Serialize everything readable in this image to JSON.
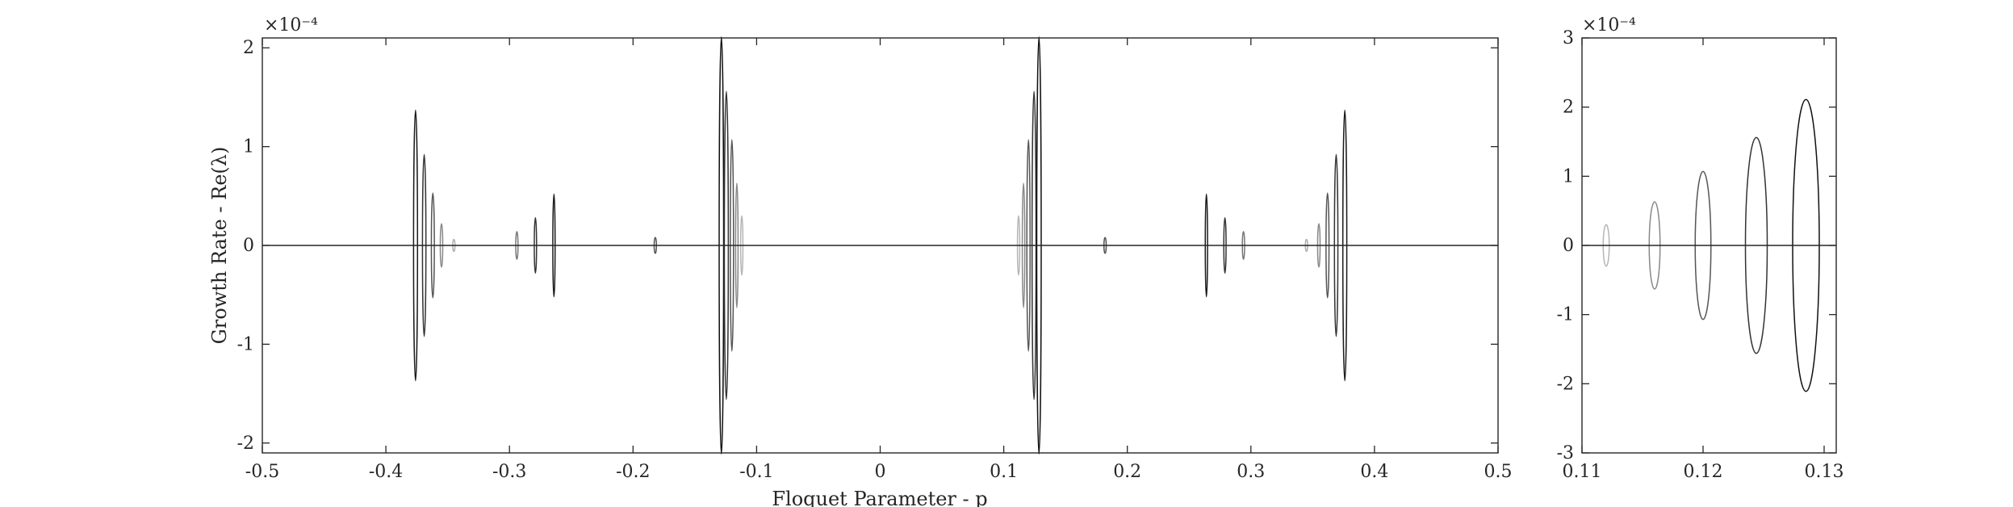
{
  "chart_data": [
    {
      "type": "scatter",
      "xlabel": "Floquet Parameter - p",
      "ylabel": "Growth Rate - Re(λ)",
      "y_exponent_label": "×10⁻⁴",
      "xlim": [
        -0.5,
        0.5
      ],
      "ylim": [
        -2.1,
        2.1
      ],
      "x_ticks": [
        -0.5,
        -0.4,
        -0.3,
        -0.2,
        -0.1,
        0,
        0.1,
        0.2,
        0.3,
        0.4,
        0.5
      ],
      "x_tick_labels": [
        "-0.5",
        "-0.4",
        "-0.3",
        "-0.2",
        "-0.1",
        "0",
        "0.1",
        "0.2",
        "0.3",
        "0.4",
        "0.5"
      ],
      "y_ticks": [
        -2,
        -1,
        0,
        1,
        2
      ],
      "y_tick_labels": [
        "-2",
        "-1",
        "0",
        "1",
        "2"
      ],
      "grid": false,
      "baseline_y": 0,
      "instability_bubbles": [
        {
          "center": -0.376,
          "halfwidth": 0.0016,
          "height": 1.37,
          "color": "#1a1a1a"
        },
        {
          "center": -0.369,
          "halfwidth": 0.0014,
          "height": 0.92,
          "color": "#333333"
        },
        {
          "center": -0.362,
          "halfwidth": 0.0012,
          "height": 0.53,
          "color": "#555555"
        },
        {
          "center": -0.355,
          "halfwidth": 0.001,
          "height": 0.22,
          "color": "#888888"
        },
        {
          "center": -0.345,
          "halfwidth": 0.0008,
          "height": 0.06,
          "color": "#b0b0b0"
        },
        {
          "center": -0.294,
          "halfwidth": 0.0009,
          "height": 0.14,
          "color": "#777777"
        },
        {
          "center": -0.279,
          "halfwidth": 0.0009,
          "height": 0.28,
          "color": "#333333"
        },
        {
          "center": -0.264,
          "halfwidth": 0.0009,
          "height": 0.52,
          "color": "#1a1a1a"
        },
        {
          "center": -0.182,
          "halfwidth": 0.0008,
          "height": 0.08,
          "color": "#555555"
        },
        {
          "center": -0.1285,
          "halfwidth": 0.0018,
          "height": 2.11,
          "color": "#111111"
        },
        {
          "center": -0.1245,
          "halfwidth": 0.0016,
          "height": 1.56,
          "color": "#333333"
        },
        {
          "center": -0.12,
          "halfwidth": 0.0013,
          "height": 1.07,
          "color": "#555555"
        },
        {
          "center": -0.116,
          "halfwidth": 0.001,
          "height": 0.63,
          "color": "#888888"
        },
        {
          "center": -0.112,
          "halfwidth": 0.0008,
          "height": 0.3,
          "color": "#b5b5b5"
        },
        {
          "center": 0.112,
          "halfwidth": 0.0008,
          "height": 0.3,
          "color": "#b5b5b5"
        },
        {
          "center": 0.116,
          "halfwidth": 0.001,
          "height": 0.63,
          "color": "#888888"
        },
        {
          "center": 0.12,
          "halfwidth": 0.0013,
          "height": 1.07,
          "color": "#555555"
        },
        {
          "center": 0.1245,
          "halfwidth": 0.0016,
          "height": 1.56,
          "color": "#333333"
        },
        {
          "center": 0.1285,
          "halfwidth": 0.0018,
          "height": 2.11,
          "color": "#111111"
        },
        {
          "center": 0.182,
          "halfwidth": 0.0008,
          "height": 0.08,
          "color": "#555555"
        },
        {
          "center": 0.264,
          "halfwidth": 0.0009,
          "height": 0.52,
          "color": "#1a1a1a"
        },
        {
          "center": 0.279,
          "halfwidth": 0.0009,
          "height": 0.28,
          "color": "#333333"
        },
        {
          "center": 0.294,
          "halfwidth": 0.0009,
          "height": 0.14,
          "color": "#777777"
        },
        {
          "center": 0.345,
          "halfwidth": 0.0008,
          "height": 0.06,
          "color": "#b0b0b0"
        },
        {
          "center": 0.355,
          "halfwidth": 0.001,
          "height": 0.22,
          "color": "#888888"
        },
        {
          "center": 0.362,
          "halfwidth": 0.0012,
          "height": 0.53,
          "color": "#555555"
        },
        {
          "center": 0.369,
          "halfwidth": 0.0014,
          "height": 0.92,
          "color": "#333333"
        },
        {
          "center": 0.376,
          "halfwidth": 0.0016,
          "height": 1.37,
          "color": "#1a1a1a"
        }
      ]
    },
    {
      "type": "scatter",
      "xlabel": "",
      "ylabel": "",
      "y_exponent_label": "×10⁻⁴",
      "xlim": [
        0.11,
        0.131
      ],
      "ylim": [
        -3,
        3
      ],
      "x_ticks": [
        0.11,
        0.12,
        0.13
      ],
      "x_tick_labels": [
        "0.11",
        "0.12",
        "0.13"
      ],
      "y_ticks": [
        -3,
        -2,
        -1,
        0,
        1,
        2,
        3
      ],
      "y_tick_labels": [
        "-3",
        "-2",
        "-1",
        "0",
        "1",
        "2",
        "3"
      ],
      "grid": false,
      "baseline_y": 0,
      "instability_bubbles": [
        {
          "center": 0.112,
          "halfwidth": 0.00025,
          "height": 0.3,
          "color": "#b5b5b5"
        },
        {
          "center": 0.116,
          "halfwidth": 0.00045,
          "height": 0.63,
          "color": "#888888"
        },
        {
          "center": 0.12,
          "halfwidth": 0.00065,
          "height": 1.07,
          "color": "#555555"
        },
        {
          "center": 0.1244,
          "halfwidth": 0.0009,
          "height": 1.56,
          "color": "#333333"
        },
        {
          "center": 0.1285,
          "halfwidth": 0.0011,
          "height": 2.11,
          "color": "#111111"
        }
      ]
    }
  ]
}
